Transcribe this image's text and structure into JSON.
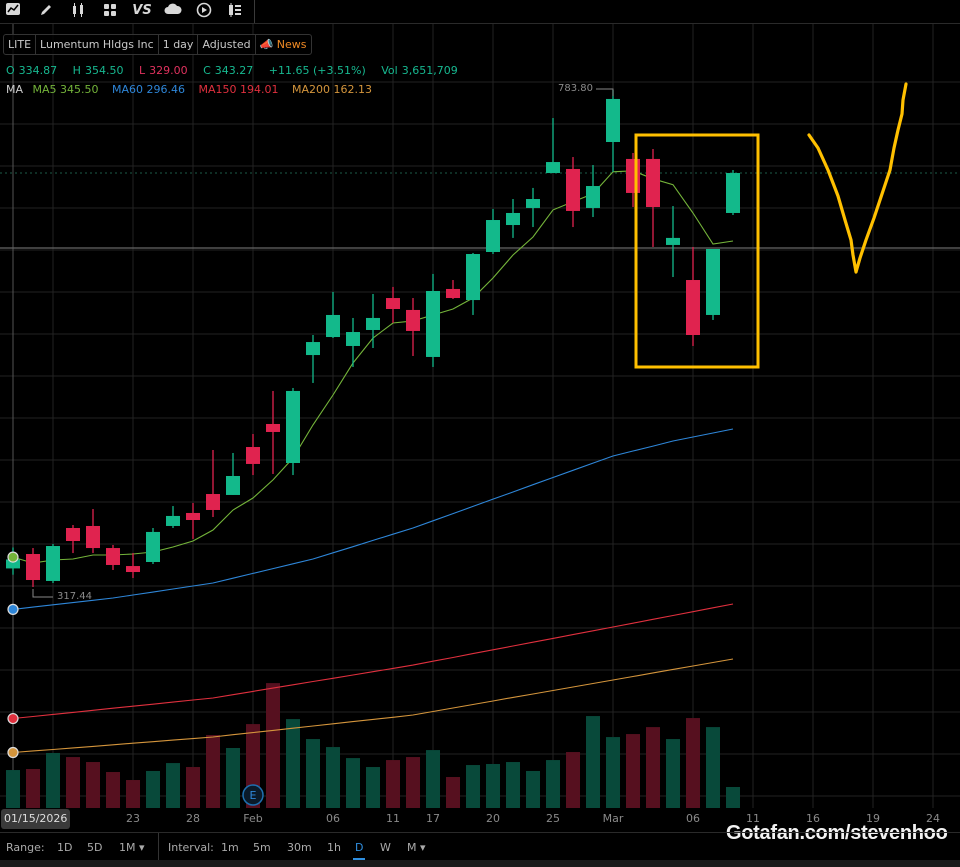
{
  "toolbar": {
    "icons": [
      "chart-style-icon",
      "drawing-pencil-icon",
      "candlestick-icon",
      "layout-grid-icon",
      "compare-vs-icon",
      "cloud-icon",
      "replay-icon",
      "indicator-list-icon"
    ],
    "vs_label": "VS"
  },
  "legend": {
    "symbol": "LITE",
    "name": "Lumentum Hldgs Inc",
    "period": "1 day",
    "adjustment": "Adjusted",
    "news": "News"
  },
  "ohlc": {
    "o_label": "O",
    "open": "334.87",
    "h_label": "H",
    "high": "354.50",
    "l_label": "L",
    "low": "329.00",
    "c_label": "C",
    "close": "343.27",
    "change": "+11.65 (+3.51%)",
    "vol_label": "Vol",
    "volume": "3,651,709"
  },
  "ma_legend": {
    "label": "MA",
    "ma5": "MA5 345.50",
    "ma60": "MA60 296.46",
    "ma150": "MA150 194.01",
    "ma200": "MA200 162.13"
  },
  "colors": {
    "up": "#13b98b",
    "down": "#e0234f",
    "vol_up": "#08493a",
    "vol_down": "#56101f",
    "ma5": "#74b43a",
    "ma60": "#2e86d8",
    "ma150": "#e0303e",
    "ma200": "#d4953c",
    "annotation": "#ffc000",
    "news": "#f08a24",
    "active_interval": "#2f8fe0"
  },
  "chart_data": {
    "type": "candlestick",
    "symbol": "LITE",
    "dates": [
      "01/15",
      "01/16",
      "01/20",
      "01/21",
      "01/22",
      "01/23",
      "01/26",
      "01/27",
      "01/28",
      "01/29",
      "01/30",
      "02/02",
      "02/03",
      "02/04",
      "02/05",
      "02/06",
      "02/09",
      "02/10",
      "02/11",
      "02/12",
      "02/13",
      "02/17",
      "02/18",
      "02/19",
      "02/20",
      "02/23",
      "02/24",
      "02/25",
      "02/26",
      "02/27",
      "03/02",
      "03/03",
      "03/04",
      "03/05",
      "03/06",
      "03/09",
      "03/10"
    ],
    "open": [
      334.87,
      348.4,
      323.1,
      372.8,
      374.7,
      354.0,
      337.1,
      340.9,
      374.7,
      386.9,
      404.7,
      403.8,
      448.8,
      470.4,
      433.8,
      535.1,
      552.0,
      543.6,
      558.6,
      588.6,
      577.4,
      533.3,
      597.1,
      586.7,
      631.8,
      657.1,
      673.1,
      705.9,
      709.7,
      673.1,
      735.0,
      719.1,
      719.1,
      638.4,
      605.5,
      572.7,
      668.4
    ],
    "high": [
      354.5,
      354.0,
      357.8,
      375.6,
      390.6,
      356.9,
      349.3,
      372.8,
      393.4,
      396.3,
      446.0,
      443.2,
      461.0,
      501.4,
      504.2,
      553.9,
      594.3,
      569.9,
      592.4,
      599.0,
      588.6,
      611.2,
      605.5,
      630.9,
      672.2,
      681.5,
      691.9,
      757.5,
      720.9,
      713.4,
      783.8,
      724.7,
      728.4,
      674.9,
      636.5,
      634.6,
      708.7
    ],
    "low": [
      329.0,
      317.44,
      321.2,
      349.3,
      349.3,
      333.4,
      325.9,
      339.0,
      372.8,
      362.5,
      383.1,
      403.8,
      422.5,
      423.5,
      422.5,
      508.9,
      551.1,
      523.9,
      541.7,
      565.2,
      534.2,
      523.9,
      587.7,
      572.7,
      629.9,
      645.0,
      655.2,
      705.9,
      655.2,
      664.6,
      706.9,
      674.0,
      636.5,
      608.3,
      543.6,
      568.0,
      666.5
    ],
    "close": [
      343.27,
      324.0,
      355.9,
      360.6,
      354.0,
      338.1,
      331.5,
      369.1,
      384.1,
      380.3,
      389.7,
      421.6,
      432.9,
      462.9,
      501.4,
      547.3,
      572.7,
      556.7,
      569.9,
      578.3,
      557.7,
      595.2,
      588.6,
      629.9,
      661.8,
      668.4,
      681.5,
      716.2,
      670.3,
      693.7,
      775.4,
      687.2,
      674.0,
      645.0,
      553.9,
      634.6,
      705.9
    ],
    "volume_millions": [
      3.65,
      3.75,
      5.29,
      4.9,
      4.42,
      3.46,
      2.69,
      3.56,
      4.32,
      3.94,
      7.02,
      5.77,
      8.07,
      12.01,
      8.55,
      6.63,
      5.86,
      4.8,
      3.94,
      4.61,
      4.9,
      5.57,
      2.98,
      4.13,
      4.23,
      4.42,
      3.56,
      4.61,
      5.38,
      8.84,
      6.82,
      7.11,
      7.78,
      6.63,
      8.65,
      7.78,
      2.02
    ],
    "moving_averages": {
      "MA5": [
        345.5,
        339.9,
        342.8,
        343.7,
        347.5,
        347.5,
        348.4,
        350.3,
        355.0,
        360.6,
        370.9,
        389.7,
        401.0,
        417.9,
        438.5,
        469.5,
        497.6,
        527.6,
        551.1,
        565.2,
        567.1,
        572.7,
        578.3,
        588.6,
        607.4,
        629.0,
        645.9,
        671.3,
        678.9,
        686.4,
        707.0,
        708.0,
        700.5,
        694.9,
        668.4,
        639.3,
        642.1
      ],
      "MA60": [
        296.46,
        298.6,
        300.7,
        302.8,
        305.0,
        307.1,
        309.9,
        312.7,
        315.6,
        318.4,
        321.2,
        325.7,
        330.2,
        334.7,
        339.2,
        343.7,
        349.5,
        355.3,
        361.2,
        367.0,
        372.8,
        379.6,
        386.3,
        393.1,
        399.9,
        406.6,
        413.4,
        420.2,
        426.9,
        433.7,
        440.4,
        445.1,
        449.7,
        454.4,
        458.2,
        461.9,
        465.7
      ],
      "MA150": [
        194.01,
        195.9,
        197.9,
        199.8,
        201.7,
        203.7,
        205.6,
        207.5,
        209.4,
        211.4,
        213.3,
        216.4,
        219.5,
        222.6,
        225.7,
        228.8,
        231.8,
        234.9,
        238.0,
        241.1,
        244.2,
        247.8,
        251.3,
        254.9,
        258.5,
        262.1,
        265.6,
        269.2,
        272.8,
        276.3,
        279.9,
        283.5,
        287.1,
        290.7,
        294.3,
        297.9,
        301.5
      ],
      "MA200": [
        162.13,
        163.6,
        165.0,
        166.5,
        167.9,
        169.4,
        170.9,
        172.3,
        173.8,
        175.2,
        176.7,
        178.8,
        180.8,
        182.9,
        184.9,
        187.0,
        189.1,
        191.1,
        193.2,
        195.2,
        197.3,
        200.6,
        203.9,
        207.2,
        210.5,
        213.8,
        217.0,
        220.3,
        223.6,
        226.9,
        230.2,
        233.5,
        236.8,
        240.1,
        243.3,
        246.6,
        249.9
      ]
    },
    "period_high_label": "783.80",
    "period_low_label": "317.44",
    "earnings_marker": "E",
    "earnings_date_index": 12,
    "hovered_date": "01/15/2026",
    "x_tick_labels": [
      {
        "label": "23",
        "index": 6
      },
      {
        "label": "28",
        "index": 9
      },
      {
        "label": "Feb",
        "index": 12
      },
      {
        "label": "06",
        "index": 16
      },
      {
        "label": "11",
        "index": 19
      },
      {
        "label": "17",
        "index": 21
      },
      {
        "label": "20",
        "index": 24
      },
      {
        "label": "25",
        "index": 27
      },
      {
        "label": "Mar",
        "index": 30
      },
      {
        "label": "06",
        "index": 34
      },
      {
        "label": "11",
        "index": 37
      },
      {
        "label": "16",
        "index": 40
      },
      {
        "label": "19",
        "index": 43
      },
      {
        "label": "24",
        "index": 46
      }
    ],
    "grid": true,
    "annotations": [
      "highlight-box around Mar 02–Mar 10 candles",
      "hand-drawn V shape"
    ]
  },
  "range_bar": {
    "range_label": "Range:",
    "ranges": [
      "1D",
      "5D",
      "1M ▾"
    ],
    "interval_label": "Interval:",
    "intervals": [
      "1m",
      "5m",
      "30m",
      "1h",
      "D",
      "W",
      "M ▾"
    ],
    "active_interval": "D"
  },
  "watermark": "Gotafan.com/stevenhoo"
}
